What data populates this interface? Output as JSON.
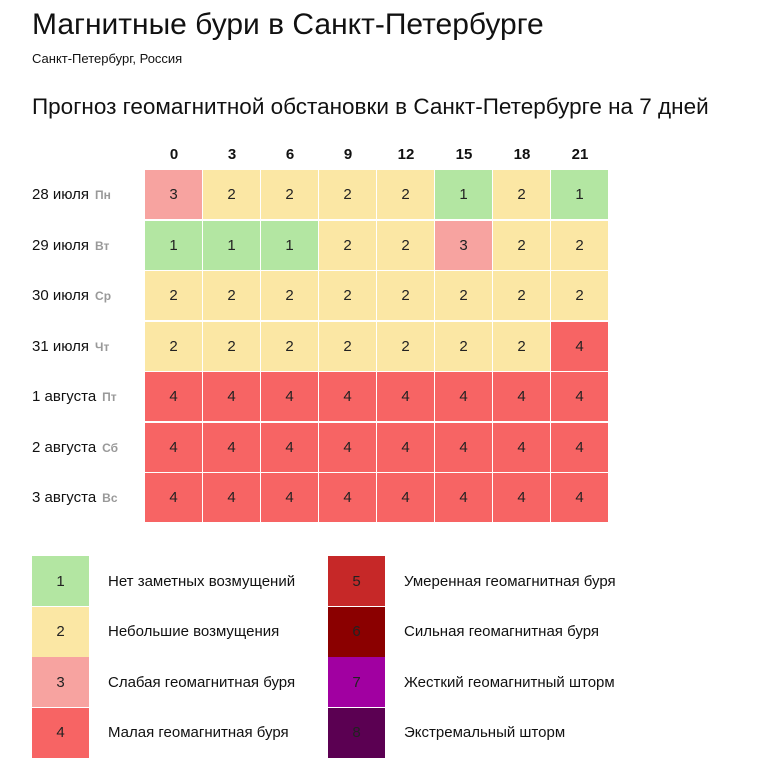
{
  "page": {
    "title": "Магнитные бури в Санкт-Петербурге",
    "location": "Санкт-Петербург, Россия",
    "subtitle": "Прогноз геомагнитной обстановки в Санкт-Петербурге на 7 дней"
  },
  "colors": {
    "1": "#b3e6a2",
    "2": "#fbe7a4",
    "3": "#f7a3a0",
    "4": "#f76464",
    "5": "#c62828",
    "6": "#8b0000",
    "7": "#a100a1",
    "8": "#5b0052"
  },
  "chart_data": {
    "type": "heatmap",
    "title": "Прогноз геомагнитной обстановки в Санкт-Петербурге на 7 дней",
    "x": [
      "0",
      "3",
      "6",
      "9",
      "12",
      "15",
      "18",
      "21"
    ],
    "rows": [
      {
        "date": "28 июля",
        "dow": "Пн",
        "values": [
          3,
          2,
          2,
          2,
          2,
          1,
          2,
          1
        ]
      },
      {
        "date": "29 июля",
        "dow": "Вт",
        "values": [
          1,
          1,
          1,
          2,
          2,
          3,
          2,
          2
        ]
      },
      {
        "date": "30 июля",
        "dow": "Ср",
        "values": [
          2,
          2,
          2,
          2,
          2,
          2,
          2,
          2
        ]
      },
      {
        "date": "31 июля",
        "dow": "Чт",
        "values": [
          2,
          2,
          2,
          2,
          2,
          2,
          2,
          4
        ]
      },
      {
        "date": "1 августа",
        "dow": "Пт",
        "values": [
          4,
          4,
          4,
          4,
          4,
          4,
          4,
          4
        ]
      },
      {
        "date": "2 августа",
        "dow": "Сб",
        "values": [
          4,
          4,
          4,
          4,
          4,
          4,
          4,
          4
        ]
      },
      {
        "date": "3 августа",
        "dow": "Вс",
        "values": [
          4,
          4,
          4,
          4,
          4,
          4,
          4,
          4
        ]
      }
    ],
    "legend": [
      {
        "value": "1",
        "label": "Нет заметных возмущений"
      },
      {
        "value": "2",
        "label": "Небольшие возмущения"
      },
      {
        "value": "3",
        "label": "Слабая геомагнитная буря"
      },
      {
        "value": "4",
        "label": "Малая геомагнитная буря"
      },
      {
        "value": "5",
        "label": "Умеренная геомагнитная буря"
      },
      {
        "value": "6",
        "label": "Сильная геомагнитная буря"
      },
      {
        "value": "7",
        "label": "Жесткий геомагнитный шторм"
      },
      {
        "value": "8",
        "label": "Экстремальный шторм"
      }
    ]
  }
}
